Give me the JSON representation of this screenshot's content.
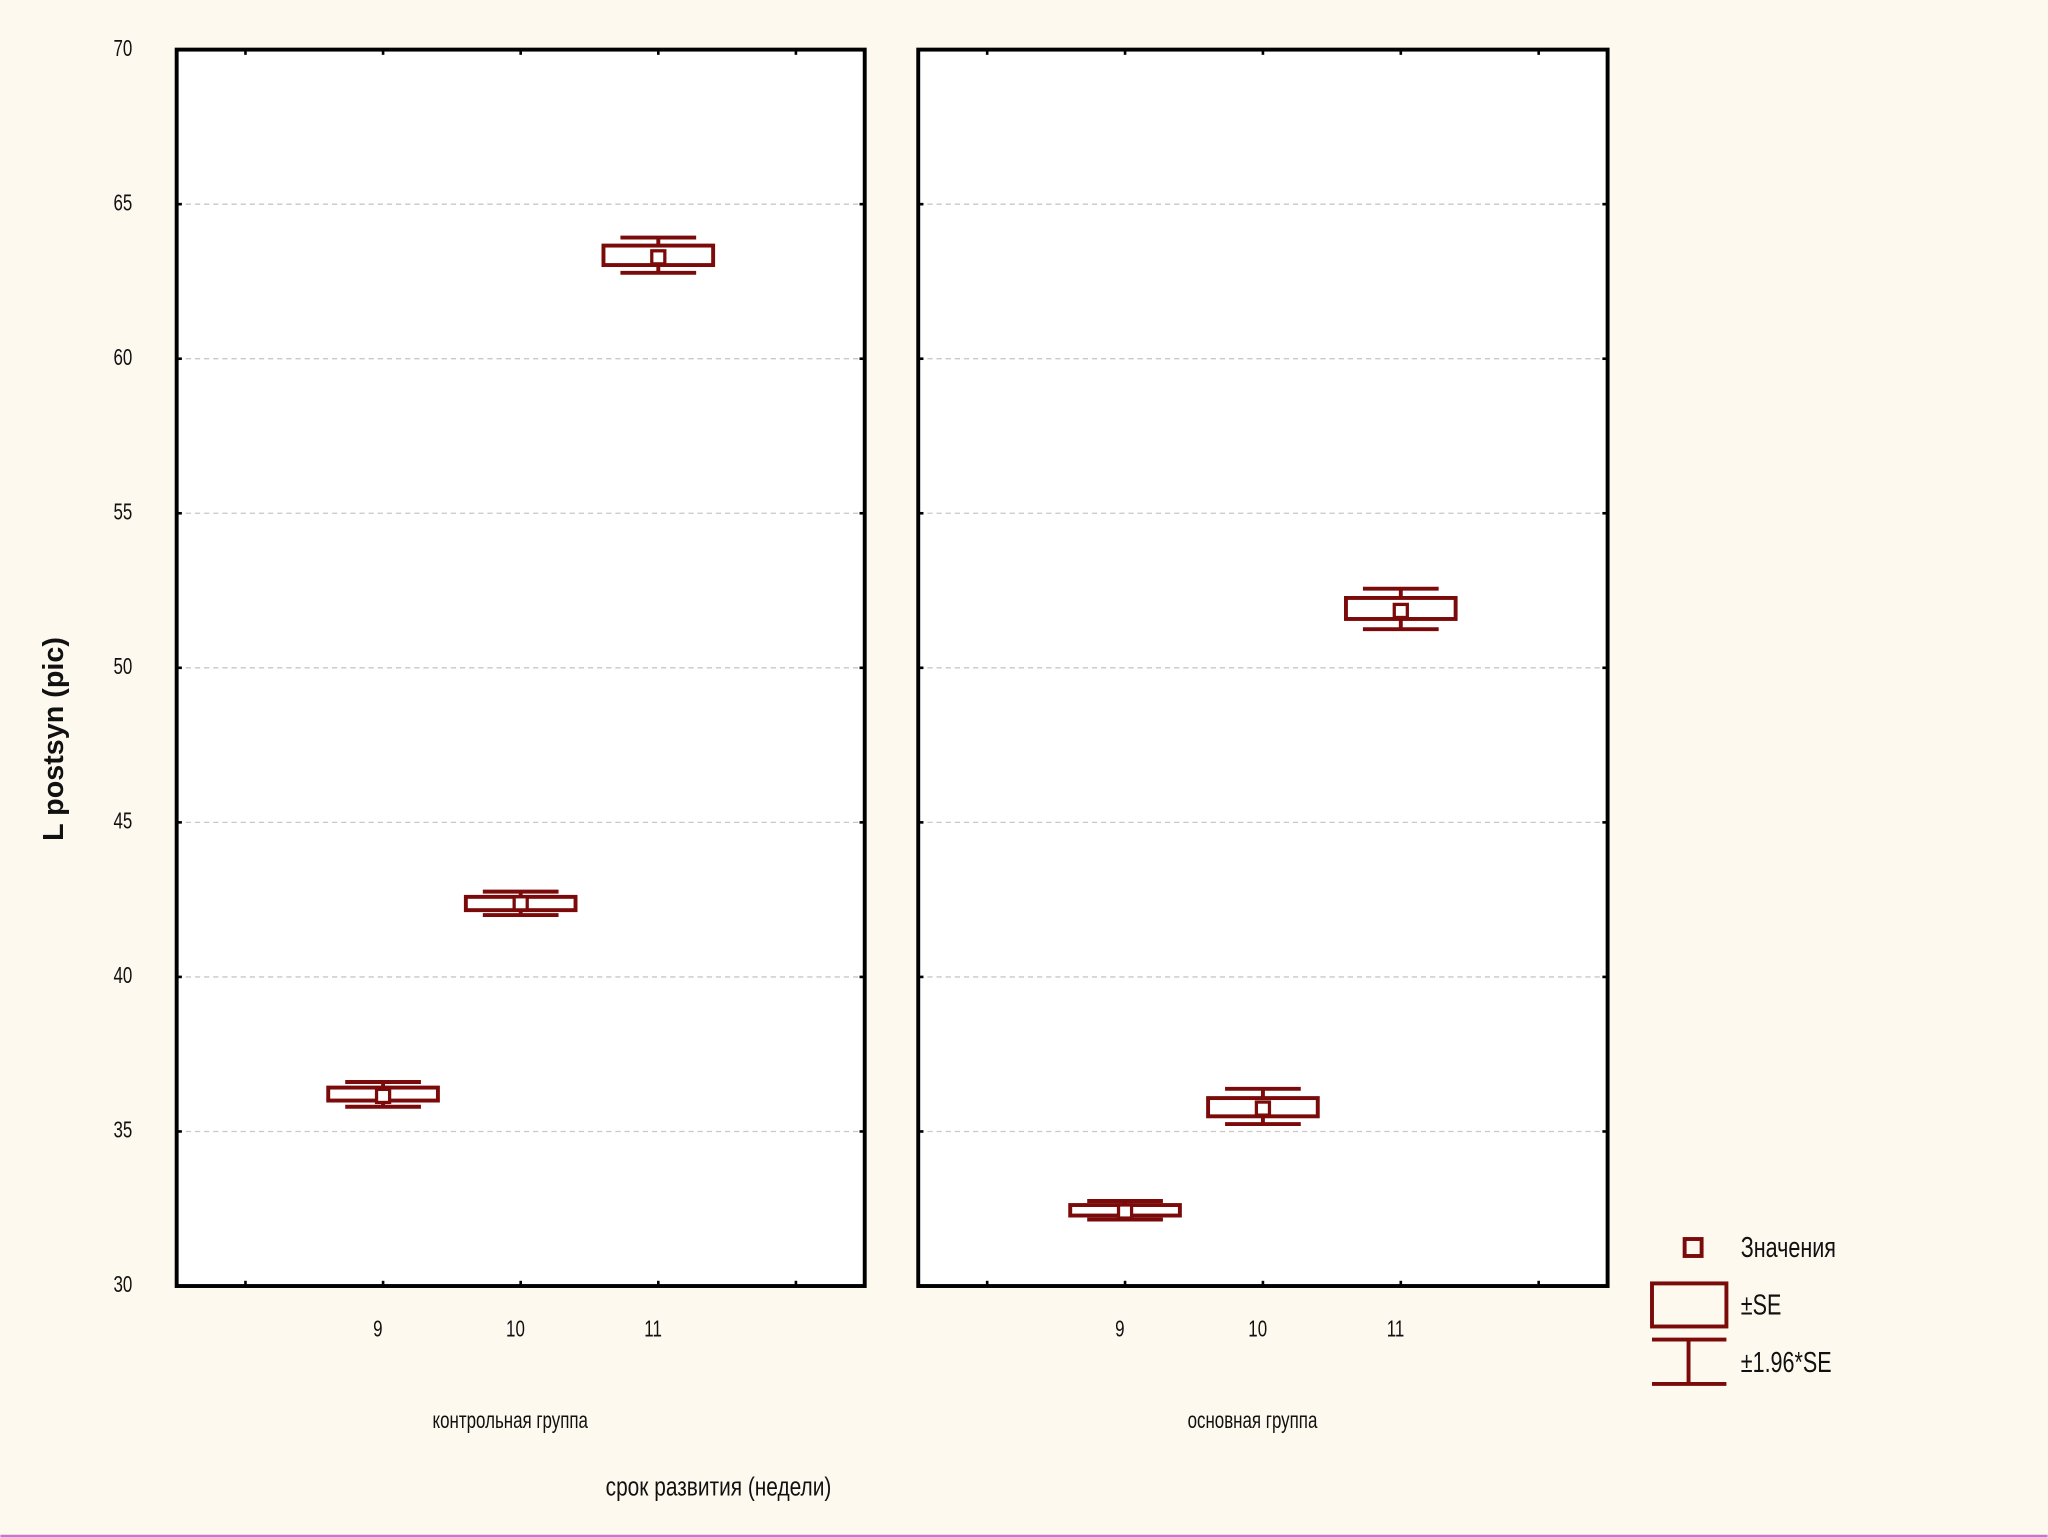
{
  "xlabel": "срок развития (недели)",
  "legend": [
    "Значения",
    "±SE",
    "±1.96*SE"
  ],
  "chart_data": [
    {
      "type": "errorbox",
      "ylabel": "L postsyn  (pic)",
      "subtitle": "контрольная группа",
      "categories": [
        null,
        "9",
        "10",
        "11",
        null
      ],
      "mean": [
        null,
        36.15,
        42.38,
        63.28,
        null
      ],
      "se_low": [
        null,
        36.0,
        42.16,
        63.03,
        null
      ],
      "se_high": [
        null,
        36.42,
        42.59,
        63.66,
        null
      ],
      "ci_low": [
        null,
        35.8,
        42.0,
        62.78,
        null
      ],
      "ci_high": [
        null,
        36.6,
        42.76,
        63.92,
        null
      ],
      "color": "#7b0a0a",
      "ylim": [
        30,
        70
      ],
      "yticks": [
        30,
        35,
        40,
        45,
        50,
        55,
        60,
        65,
        70
      ],
      "grid": true,
      "y_tick_labels": true
    },
    {
      "type": "errorbox",
      "subtitle": "основная группа",
      "categories": [
        null,
        "9",
        "10",
        "11",
        null
      ],
      "mean": [
        null,
        32.41,
        35.74,
        51.84,
        null
      ],
      "se_low": [
        null,
        32.28,
        35.49,
        51.58,
        null
      ],
      "se_high": [
        null,
        32.62,
        36.08,
        52.26,
        null
      ],
      "ci_low": [
        null,
        32.15,
        35.24,
        51.25,
        null
      ],
      "ci_high": [
        null,
        32.75,
        36.38,
        52.56,
        null
      ],
      "color": "#7b0a0a",
      "ylim": [
        30,
        70
      ],
      "yticks": [
        30,
        35,
        40,
        45,
        50,
        55,
        60,
        65,
        70
      ],
      "grid": true,
      "y_tick_labels": false
    }
  ]
}
